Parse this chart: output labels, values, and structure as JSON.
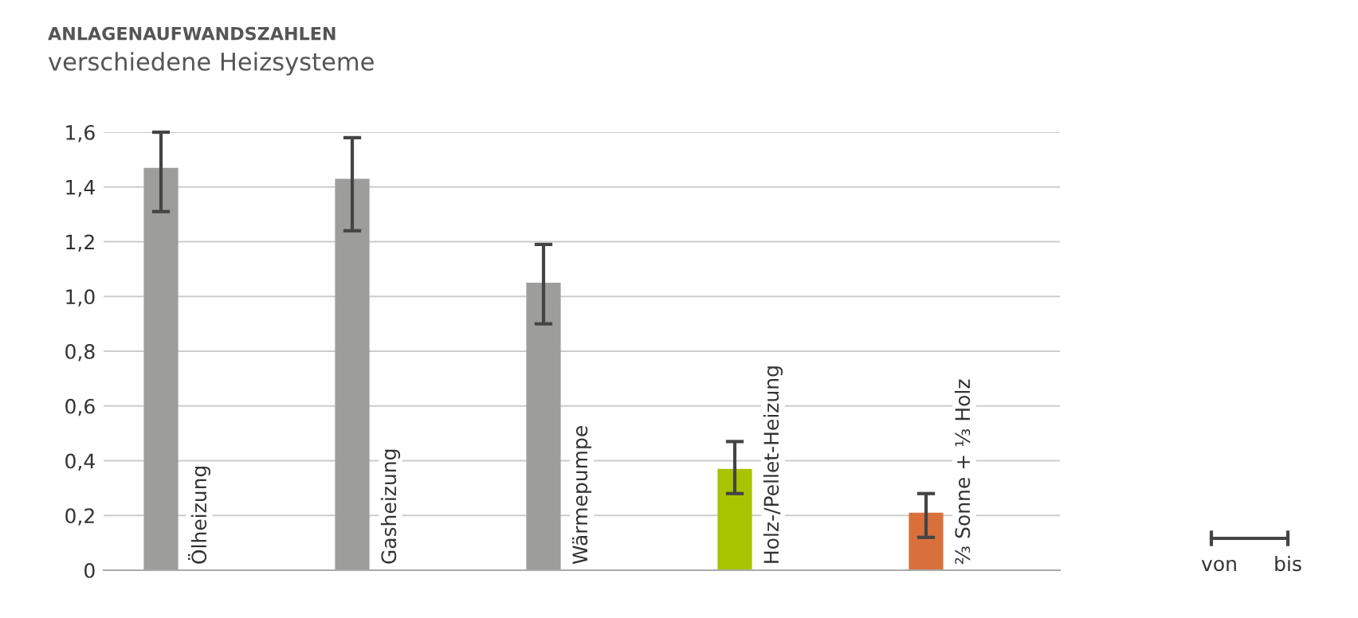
{
  "chart_data": {
    "type": "bar",
    "title": "ANLAGENAUFWANDSZAHLEN",
    "subtitle": "verschiedene Heizsysteme",
    "categories": [
      "Ölheizung",
      "Gasheizung",
      "Wärmepumpe",
      "Holz-/Pellet-Heizung",
      "⅔ Sonne + ⅓ Holz"
    ],
    "values": [
      1.47,
      1.43,
      1.05,
      0.37,
      0.21
    ],
    "colors": [
      "#9d9d9c",
      "#9d9d9c",
      "#9d9d9c",
      "#a8c400",
      "#d9703c"
    ],
    "errors": [
      [
        1.31,
        1.6
      ],
      [
        1.24,
        1.58
      ],
      [
        0.9,
        1.19
      ],
      [
        0.28,
        0.47
      ],
      [
        0.12,
        0.28
      ]
    ],
    "ylim": [
      0,
      1.6
    ],
    "yticks": [
      {
        "value": 0,
        "label": "0"
      },
      {
        "value": 0.2,
        "label": "0,2"
      },
      {
        "value": 0.4,
        "label": "0,4"
      },
      {
        "value": 0.6,
        "label": "0,6"
      },
      {
        "value": 0.8,
        "label": "0,8"
      },
      {
        "value": 1.0,
        "label": "1,0"
      },
      {
        "value": 1.2,
        "label": "1,2"
      },
      {
        "value": 1.4,
        "label": "1,4"
      },
      {
        "value": 1.6,
        "label": "1,6"
      }
    ],
    "grid": "y",
    "annotations": [
      "von",
      "bis"
    ]
  }
}
